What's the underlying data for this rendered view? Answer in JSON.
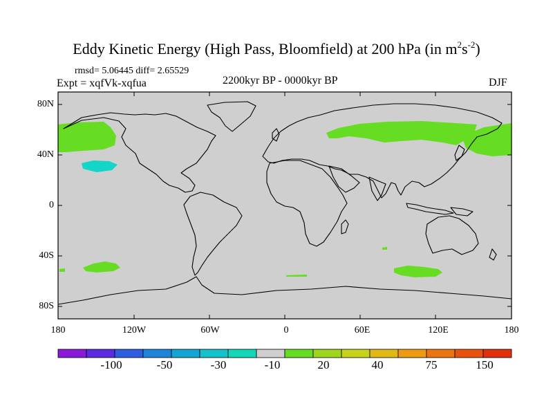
{
  "title": {
    "main": "Eddy Kinetic Energy (High Pass, Bloomfield) at 200 hPa (in m",
    "sup1": "2",
    "mid": "s",
    "sup2": "-2",
    "close": ")"
  },
  "stats": "rmsd= 5.06445 diff= 2.65529",
  "experiment": "Expt = xqfVk-xqfua",
  "period": "2200kyr BP - 0000kyr BP",
  "season": "DJF",
  "lat_labels": [
    "80N",
    "40N",
    "0",
    "40S",
    "80S"
  ],
  "lon_labels": [
    "180",
    "120W",
    "60W",
    "0",
    "60E",
    "120E",
    "180"
  ],
  "colorbar": {
    "colors": [
      "#8a1ad8",
      "#5a2be0",
      "#2f5de0",
      "#1e84d8",
      "#16a5d2",
      "#14c2cc",
      "#14d6b8",
      "#cfcfcf",
      "#66dd22",
      "#9ed61e",
      "#c8d21a",
      "#e2b814",
      "#ee9a12",
      "#ec7410",
      "#e8520e",
      "#e0300c"
    ],
    "labels": [
      "-100",
      "-50",
      "-30",
      "-10",
      "20",
      "40",
      "75",
      "150"
    ]
  },
  "map": {
    "land_color": "#cfcfcf",
    "positive_color": "#66dd22",
    "negative_color": "#14d6c8"
  }
}
